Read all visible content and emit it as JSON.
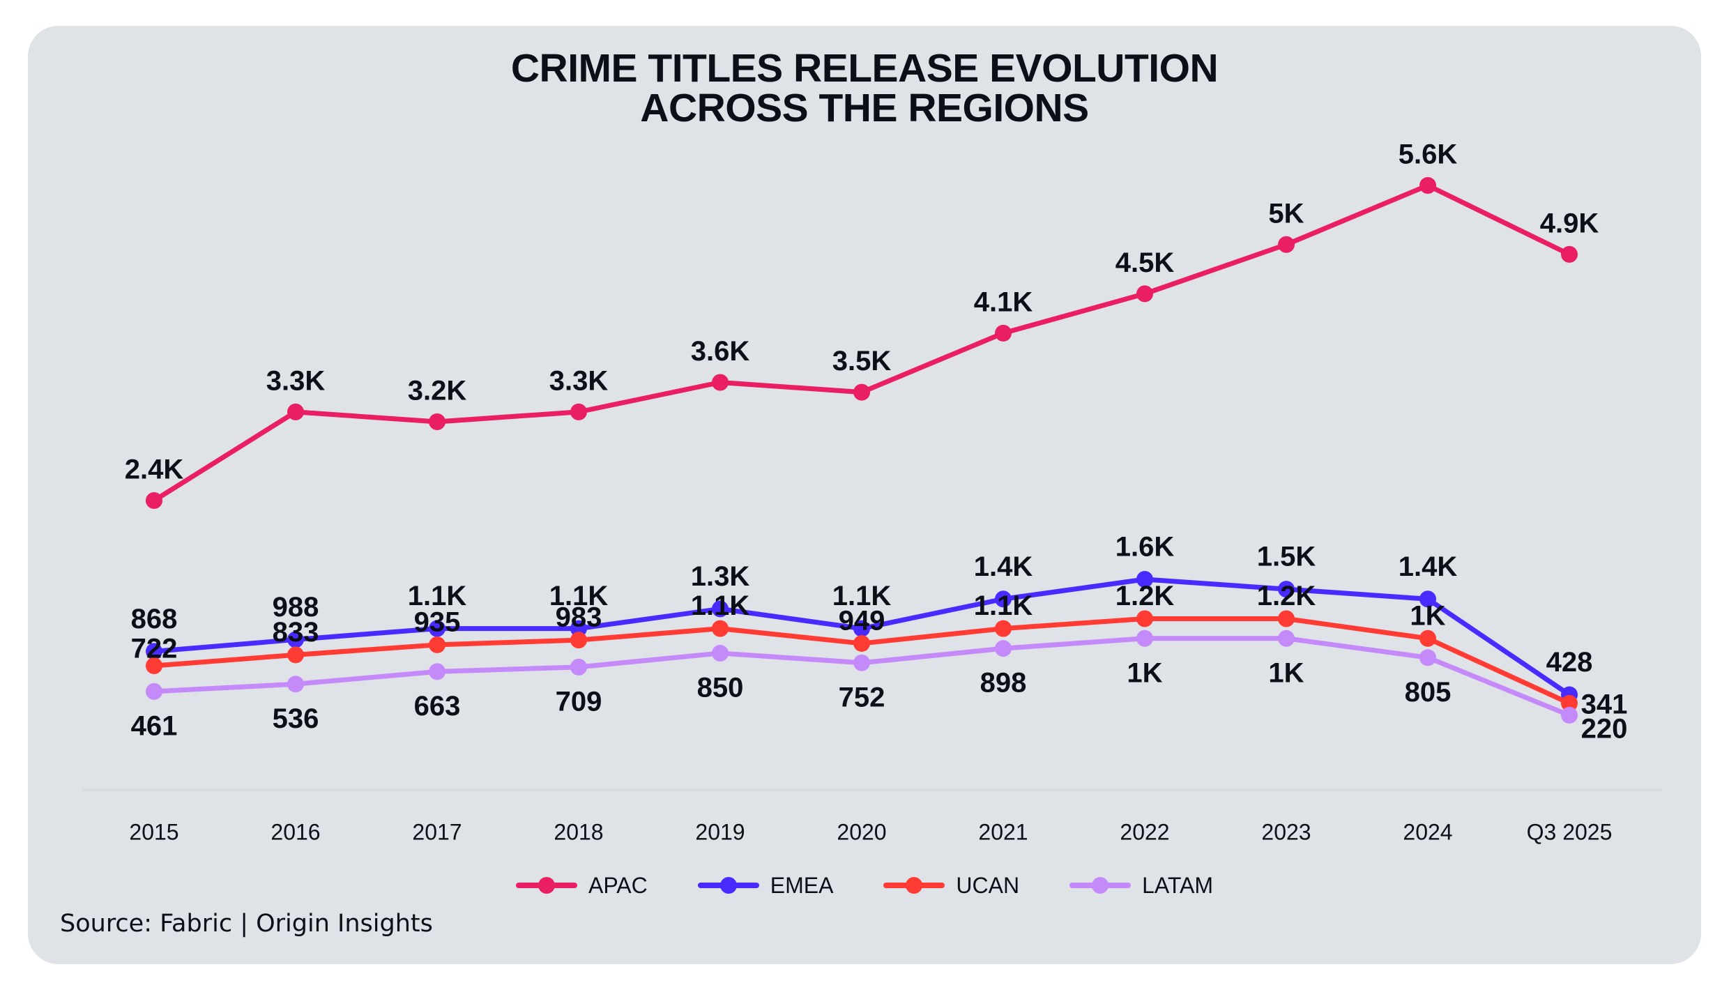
{
  "title_lines": [
    "CRIME TITLES RELEASE EVOLUTION",
    "ACROSS THE REGIONS"
  ],
  "source": "Source: Fabric | Origin Insights",
  "chart_data": {
    "type": "line",
    "title": "CRIME TITLES RELEASE EVOLUTION ACROSS THE REGIONS",
    "xlabel": "",
    "ylabel": "",
    "categories": [
      "2015",
      "2016",
      "2017",
      "2018",
      "2019",
      "2020",
      "2021",
      "2022",
      "2023",
      "2024",
      "Q3 2025"
    ],
    "ylim": [
      0,
      5600
    ],
    "grid": false,
    "y_axis_visible": false,
    "legend_position": "bottom-center",
    "series": [
      {
        "name": "APAC",
        "color": "#E91E63",
        "values": [
          2400,
          3300,
          3200,
          3300,
          3600,
          3500,
          4100,
          4500,
          5000,
          5600,
          4900
        ],
        "labels": [
          "2.4K",
          "3.3K",
          "3.2K",
          "3.3K",
          "3.6K",
          "3.5K",
          "4.1K",
          "4.5K",
          "5K",
          "5.6K",
          "4.9K"
        ]
      },
      {
        "name": "EMEA",
        "color": "#4A2BFF",
        "values": [
          868,
          988,
          1100,
          1100,
          1300,
          1100,
          1400,
          1600,
          1500,
          1400,
          428
        ],
        "labels": [
          "868",
          "988",
          "1.1K",
          "1.1K",
          "1.3K",
          "1.1K",
          "1.4K",
          "1.6K",
          "1.5K",
          "1.4K",
          "428"
        ]
      },
      {
        "name": "UCAN",
        "color": "#FF3B33",
        "values": [
          722,
          833,
          935,
          983,
          1100,
          949,
          1100,
          1200,
          1200,
          1000,
          341
        ],
        "labels": [
          "722",
          "833",
          "935",
          "983",
          "1.1K",
          "949",
          "1.1K",
          "1.2K",
          "1.2K",
          "1K",
          "341"
        ]
      },
      {
        "name": "LATAM",
        "color": "#C58AF9",
        "values": [
          461,
          536,
          663,
          709,
          850,
          752,
          898,
          1000,
          1000,
          805,
          220
        ],
        "labels": [
          "461",
          "536",
          "663",
          "709",
          "850",
          "752",
          "898",
          "1K",
          "1K",
          "805",
          "220"
        ]
      }
    ]
  }
}
